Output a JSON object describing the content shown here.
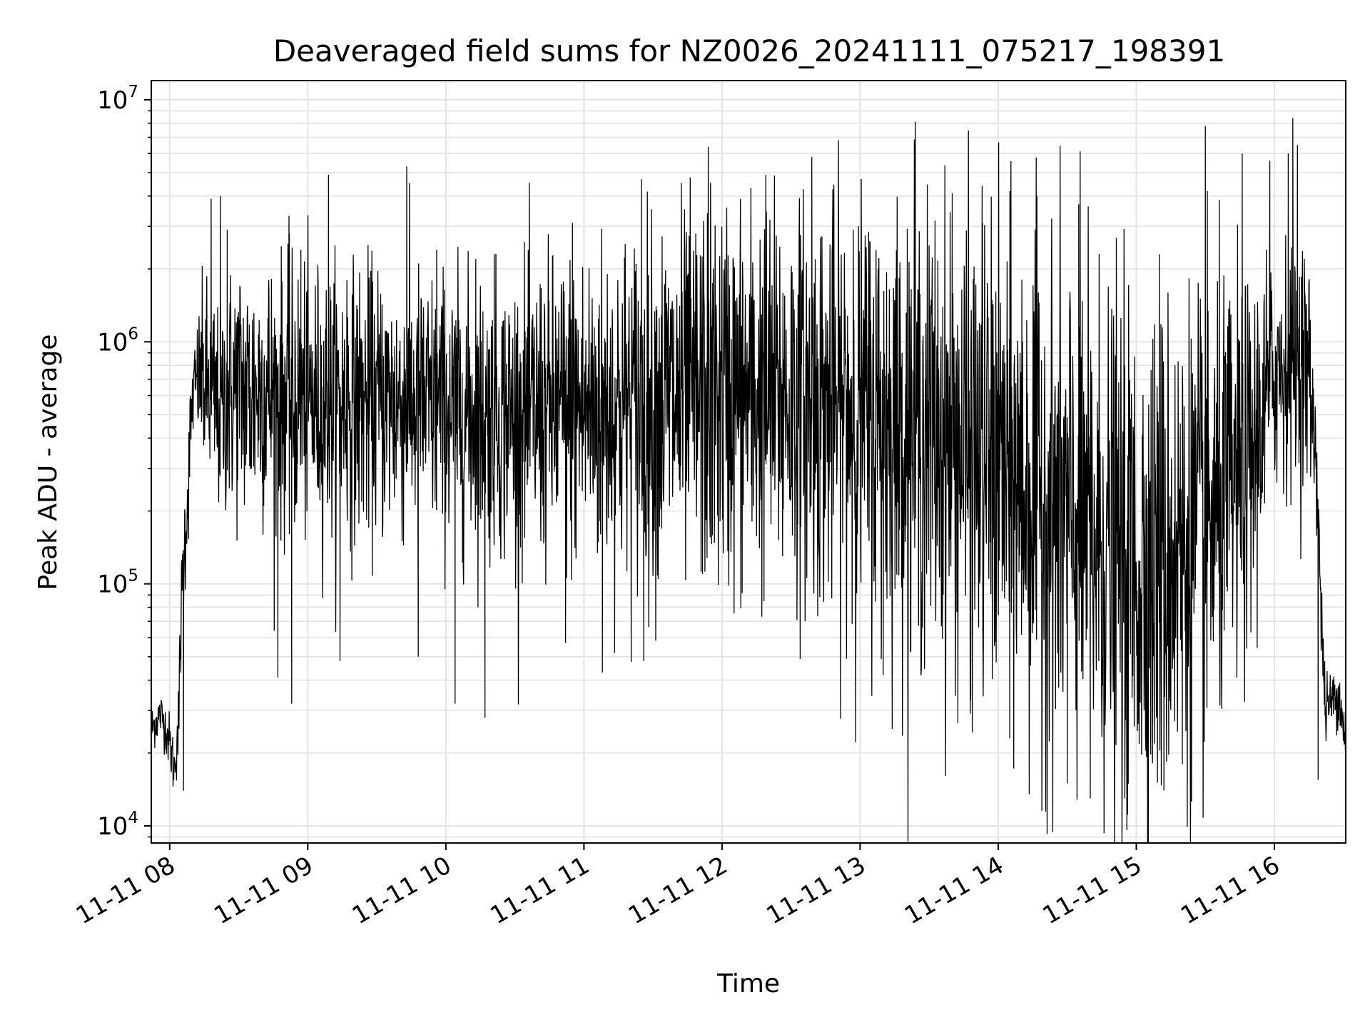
{
  "chart_data": {
    "type": "line",
    "title": "Deaveraged field sums for NZ0026_20241111_075217_198391",
    "xlabel": "Time",
    "ylabel": "Peak ADU - average",
    "yscale": "log",
    "ylim": [
      8500,
      12000000
    ],
    "xlim": [
      "2024-11-11T07:52:00",
      "2024-11-11T16:31:00"
    ],
    "grid": true,
    "line_color": "#000000",
    "x_ticks": [
      {
        "value": "2024-11-11T08:00:00",
        "label": "11-11 08"
      },
      {
        "value": "2024-11-11T09:00:00",
        "label": "11-11 09"
      },
      {
        "value": "2024-11-11T10:00:00",
        "label": "11-11 10"
      },
      {
        "value": "2024-11-11T11:00:00",
        "label": "11-11 11"
      },
      {
        "value": "2024-11-11T12:00:00",
        "label": "11-11 12"
      },
      {
        "value": "2024-11-11T13:00:00",
        "label": "11-11 13"
      },
      {
        "value": "2024-11-11T14:00:00",
        "label": "11-11 14"
      },
      {
        "value": "2024-11-11T15:00:00",
        "label": "11-11 15"
      },
      {
        "value": "2024-11-11T16:00:00",
        "label": "11-11 16"
      }
    ],
    "y_ticks": [
      {
        "value": 10000,
        "base": "10",
        "exp": "4"
      },
      {
        "value": 100000,
        "base": "10",
        "exp": "5"
      },
      {
        "value": 1000000,
        "base": "10",
        "exp": "6"
      },
      {
        "value": 10000000,
        "base": "10",
        "exp": "7"
      }
    ],
    "series": [
      {
        "x": [
          "2024-11-11T07:52:00",
          "2024-11-11T07:54:00",
          "2024-11-11T07:56:00",
          "2024-11-11T07:58:00",
          "2024-11-11T08:00:00",
          "2024-11-11T08:02:00",
          "2024-11-11T08:04:00",
          "2024-11-11T08:06:00",
          "2024-11-11T08:08:00",
          "2024-11-11T08:10:00",
          "2024-11-11T08:12:00",
          "2024-11-11T08:14:00",
          "2024-11-11T08:16:00",
          "2024-11-11T08:18:00",
          "2024-11-11T08:20:00",
          "2024-11-11T08:22:00",
          "2024-11-11T08:25:00",
          "2024-11-11T08:30:00",
          "2024-11-11T08:35:00",
          "2024-11-11T08:40:00",
          "2024-11-11T08:45:00",
          "2024-11-11T08:50:00",
          "2024-11-11T09:00:00",
          "2024-11-11T09:10:00",
          "2024-11-11T09:20:00",
          "2024-11-11T09:30:00",
          "2024-11-11T09:40:00",
          "2024-11-11T10:00:00",
          "2024-11-11T10:20:00",
          "2024-11-11T10:40:00",
          "2024-11-11T11:00:00",
          "2024-11-11T11:30:00",
          "2024-11-11T12:00:00",
          "2024-11-11T12:30:00",
          "2024-11-11T13:00:00",
          "2024-11-11T13:30:00",
          "2024-11-11T14:00:00",
          "2024-11-11T14:30:00",
          "2024-11-11T15:00:00",
          "2024-11-11T15:30:00",
          "2024-11-11T15:50:00",
          "2024-11-11T16:00:00",
          "2024-11-11T16:10:00",
          "2024-11-11T16:15:00",
          "2024-11-11T16:18:00",
          "2024-11-11T16:20:00",
          "2024-11-11T16:22:00",
          "2024-11-11T16:25:00",
          "2024-11-11T16:28:00",
          "2024-11-11T16:31:00"
        ],
        "center": [
          25000,
          27000,
          29000,
          26000,
          22000,
          17000,
          27000,
          120000,
          240000,
          600000,
          700000,
          700000,
          650000,
          600000,
          550000,
          500000,
          600000,
          650000,
          600000,
          650000,
          600000,
          580000,
          560000,
          560000,
          560000,
          560000,
          560000,
          520000,
          490000,
          500000,
          520000,
          550000,
          600000,
          580000,
          500000,
          420000,
          300000,
          180000,
          110000,
          160000,
          300000,
          750000,
          900000,
          700000,
          350000,
          80000,
          30000,
          33000,
          35000,
          22000
        ],
        "spread": [
          0.08,
          0.08,
          0.08,
          0.08,
          0.1,
          0.1,
          0.15,
          0.2,
          0.2,
          0.15,
          0.2,
          0.3,
          0.35,
          0.35,
          0.35,
          0.35,
          0.4,
          0.45,
          0.45,
          0.45,
          0.45,
          0.45,
          0.45,
          0.45,
          0.45,
          0.45,
          0.45,
          0.45,
          0.45,
          0.5,
          0.55,
          0.6,
          0.65,
          0.65,
          0.7,
          0.75,
          0.8,
          0.85,
          0.85,
          0.8,
          0.6,
          0.4,
          0.4,
          0.4,
          0.2,
          0.15,
          0.12,
          0.1,
          0.1,
          0.1
        ]
      }
    ],
    "spikes": [
      {
        "x": "2024-11-11T08:18:00",
        "y": 3900000
      },
      {
        "x": "2024-11-11T08:22:00",
        "y": 4000000
      },
      {
        "x": "2024-11-11T08:25:00",
        "y": 2900000
      },
      {
        "x": "2024-11-11T08:43:00",
        "y": 1800000
      },
      {
        "x": "2024-11-11T08:52:00",
        "y": 2800000
      },
      {
        "x": "2024-11-11T08:57:00",
        "y": 2400000
      },
      {
        "x": "2024-11-11T09:09:00",
        "y": 4900000
      },
      {
        "x": "2024-11-11T09:17:00",
        "y": 1800000
      },
      {
        "x": "2024-11-11T09:43:00",
        "y": 5300000
      },
      {
        "x": "2024-11-11T09:56:00",
        "y": 2400000
      },
      {
        "x": "2024-11-11T10:13:00",
        "y": 2200000
      },
      {
        "x": "2024-11-11T10:21:00",
        "y": 2300000
      },
      {
        "x": "2024-11-11T10:55:00",
        "y": 3100000
      },
      {
        "x": "2024-11-11T11:25:00",
        "y": 4700000
      },
      {
        "x": "2024-11-11T11:54:00",
        "y": 6400000
      },
      {
        "x": "2024-11-11T12:19:00",
        "y": 4900000
      },
      {
        "x": "2024-11-11T12:39:00",
        "y": 5800000
      },
      {
        "x": "2024-11-11T12:57:00",
        "y": 2900000
      },
      {
        "x": "2024-11-11T13:24:00",
        "y": 8100000
      },
      {
        "x": "2024-11-11T13:40:00",
        "y": 4100000
      },
      {
        "x": "2024-11-11T13:53:00",
        "y": 4400000
      },
      {
        "x": "2024-11-11T14:16:00",
        "y": 2900000
      },
      {
        "x": "2024-11-11T14:35:00",
        "y": 3700000
      },
      {
        "x": "2024-11-11T15:10:00",
        "y": 2300000
      },
      {
        "x": "2024-11-11T15:30:00",
        "y": 7800000
      },
      {
        "x": "2024-11-11T15:46:00",
        "y": 6000000
      },
      {
        "x": "2024-11-11T15:58:00",
        "y": 5600000
      },
      {
        "x": "2024-11-11T16:06:00",
        "y": 6000000
      },
      {
        "x": "2024-11-11T16:08:00",
        "y": 8400000
      },
      {
        "x": "2024-11-11T16:10:00",
        "y": 6500000
      },
      {
        "x": "2024-11-11T16:13:00",
        "y": 2200000
      }
    ],
    "dips": [
      {
        "x": "2024-11-11T08:06:00",
        "y": 14000
      },
      {
        "x": "2024-11-11T08:47:00",
        "y": 41000
      },
      {
        "x": "2024-11-11T08:53:00",
        "y": 32000
      },
      {
        "x": "2024-11-11T09:14:00",
        "y": 48000
      },
      {
        "x": "2024-11-11T09:48:00",
        "y": 50000
      },
      {
        "x": "2024-11-11T10:04:00",
        "y": 32000
      },
      {
        "x": "2024-11-11T10:17:00",
        "y": 28000
      },
      {
        "x": "2024-11-11T10:52:00",
        "y": 57000
      },
      {
        "x": "2024-11-11T11:08:00",
        "y": 43000
      },
      {
        "x": "2024-11-11T11:26:00",
        "y": 48000
      },
      {
        "x": "2024-11-11T13:10:00",
        "y": 42000
      },
      {
        "x": "2024-11-11T13:48:00",
        "y": 33000
      },
      {
        "x": "2024-11-11T14:05:00",
        "y": 23000
      },
      {
        "x": "2024-11-11T14:30:00",
        "y": 15000
      },
      {
        "x": "2024-11-11T14:40:00",
        "y": 13000
      },
      {
        "x": "2024-11-11T14:55:00",
        "y": 13000
      },
      {
        "x": "2024-11-11T15:05:00",
        "y": 11500
      },
      {
        "x": "2024-11-11T15:12:00",
        "y": 14000
      },
      {
        "x": "2024-11-11T15:20:00",
        "y": 18000
      },
      {
        "x": "2024-11-11T16:19:00",
        "y": 15500
      }
    ]
  }
}
